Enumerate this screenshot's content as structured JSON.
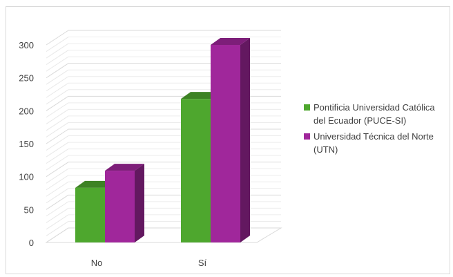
{
  "chart_data": {
    "type": "bar",
    "categories": [
      "No",
      "Sí"
    ],
    "series": [
      {
        "name": "Pontificia Universidad Católica del Ecuador (PUCE-SI)",
        "values": [
          83,
          218
        ],
        "color": "#4ea72e"
      },
      {
        "name": "Universidad Técnica del Norte (UTN)",
        "values": [
          109,
          300
        ],
        "color": "#a0279b"
      }
    ],
    "ylim": [
      0,
      300
    ],
    "yticks": [
      0,
      50,
      100,
      150,
      200,
      250,
      300
    ],
    "grid": true,
    "three_d": true,
    "legend_position": "right",
    "title": "",
    "xlabel": "",
    "ylabel": ""
  }
}
